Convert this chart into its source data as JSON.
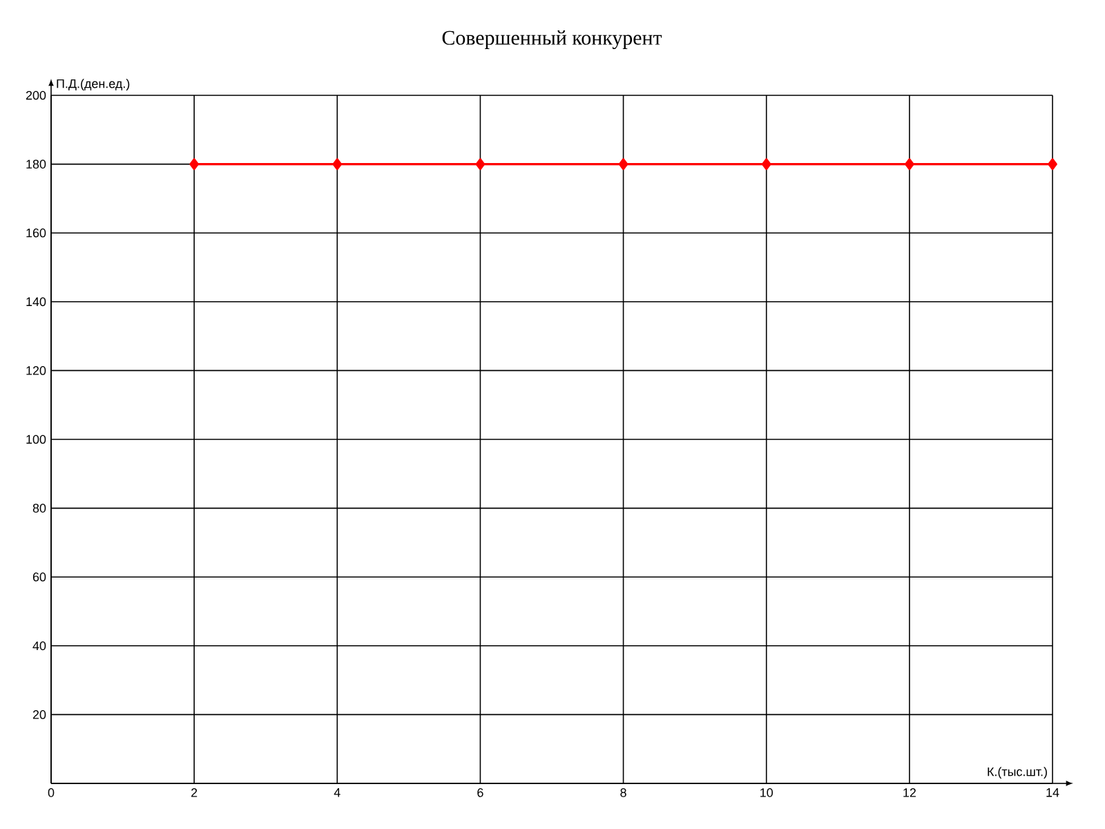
{
  "chart_data": {
    "type": "line",
    "title": "Совершенный конкурент",
    "xlabel": "К.(тыс.шт.)",
    "ylabel": "П.Д.(ден.ед.)",
    "x": [
      2,
      4,
      6,
      8,
      10,
      12,
      14
    ],
    "series": [
      {
        "color": "#ff0000",
        "values": [
          180,
          180,
          180,
          180,
          180,
          180,
          180
        ]
      }
    ],
    "xlim": [
      0,
      14
    ],
    "ylim": [
      0,
      200
    ],
    "xticks": [
      0,
      2,
      4,
      6,
      8,
      10,
      12,
      14
    ],
    "yticks": [
      {
        "value": 0,
        "label": null
      },
      20,
      40,
      60,
      80,
      100,
      120,
      140,
      160,
      180,
      200
    ],
    "grid": true,
    "marker": "diamond",
    "line_style": "solid"
  }
}
